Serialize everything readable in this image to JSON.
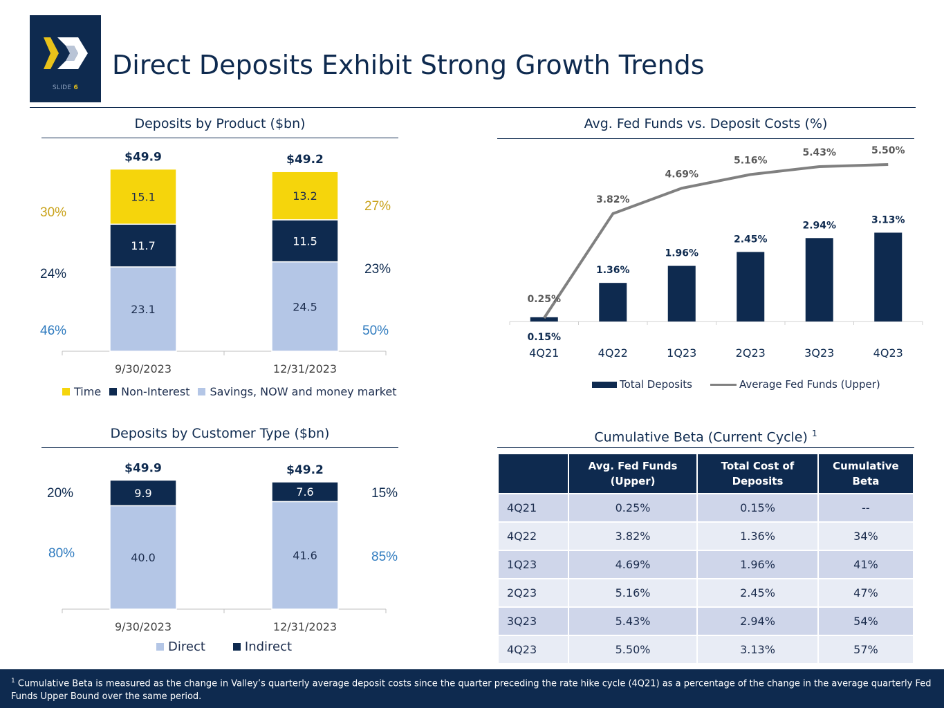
{
  "header": {
    "title": "Direct Deposits Exhibit Strong Growth Trends",
    "slide_word": "SLIDE",
    "slide_number": "6"
  },
  "colors": {
    "navy": "#0e2a4f",
    "yellow": "#f5d50c",
    "light_blue": "#b4c6e6",
    "gray_line": "#808080",
    "pct_gold": "#c9a21a",
    "pct_blue": "#2f7bbf"
  },
  "chart_data": [
    {
      "id": "product",
      "type": "bar",
      "stacked": true,
      "title": "Deposits by Product ($bn)",
      "categories": [
        "9/30/2023",
        "12/31/2023"
      ],
      "totals": [
        "$49.9",
        "$49.2"
      ],
      "series": [
        {
          "name": "Savings, NOW and money market",
          "values": [
            23.1,
            24.5
          ],
          "labels": [
            "23.1",
            "24.5"
          ],
          "color": "#b4c6e6",
          "text_color": "#1b2c4d"
        },
        {
          "name": "Non-Interest",
          "values": [
            11.7,
            11.5
          ],
          "labels": [
            "11.7",
            "11.5"
          ],
          "color": "#0e2a4f",
          "text_color": "#ffffff"
        },
        {
          "name": "Time",
          "values": [
            15.1,
            13.2
          ],
          "labels": [
            "15.1",
            "13.2"
          ],
          "color": "#f5d50c",
          "text_color": "#1b2c4d"
        }
      ],
      "legend_order": [
        "Time",
        "Non-Interest",
        "Savings, NOW and money market"
      ],
      "share_left": {
        "time": "30%",
        "noninterest": "24%",
        "savings": "46%"
      },
      "share_right": {
        "time": "27%",
        "noninterest": "23%",
        "savings": "50%"
      },
      "ylim": [
        0,
        50
      ]
    },
    {
      "id": "customer",
      "type": "bar",
      "stacked": true,
      "title": "Deposits by Customer Type ($bn)",
      "categories": [
        "9/30/2023",
        "12/31/2023"
      ],
      "totals": [
        "$49.9",
        "$49.2"
      ],
      "series": [
        {
          "name": "Direct",
          "values": [
            40.0,
            41.6
          ],
          "labels": [
            "40.0",
            "41.6"
          ],
          "color": "#b4c6e6",
          "text_color": "#1b2c4d"
        },
        {
          "name": "Indirect",
          "values": [
            9.9,
            7.6
          ],
          "labels": [
            "9.9",
            "7.6"
          ],
          "color": "#0e2a4f",
          "text_color": "#ffffff"
        }
      ],
      "legend_order": [
        "Direct",
        "Indirect"
      ],
      "share_left": {
        "indirect": "20%",
        "direct": "80%"
      },
      "share_right": {
        "indirect": "15%",
        "direct": "85%"
      },
      "ylim": [
        0,
        50
      ]
    },
    {
      "id": "fedfunds",
      "type": "bar+line",
      "title": "Avg. Fed Funds vs. Deposit Costs (%)",
      "categories": [
        "4Q21",
        "4Q22",
        "1Q23",
        "2Q23",
        "3Q23",
        "4Q23"
      ],
      "series": [
        {
          "name": "Total Deposits",
          "type": "bar",
          "values": [
            0.15,
            1.36,
            1.96,
            2.45,
            2.94,
            3.13
          ],
          "labels": [
            "0.15%",
            "1.36%",
            "1.96%",
            "2.45%",
            "2.94%",
            "3.13%"
          ]
        },
        {
          "name": "Average Fed Funds (Upper)",
          "type": "line",
          "values": [
            0.25,
            3.82,
            4.69,
            5.16,
            5.43,
            5.5
          ],
          "labels": [
            "0.25%",
            "3.82%",
            "4.69%",
            "5.16%",
            "5.43%",
            "5.50%"
          ]
        }
      ],
      "ylim": [
        0,
        5.5
      ]
    }
  ],
  "beta_table": {
    "title": "Cumulative Beta (Current Cycle)",
    "title_sup": "1",
    "headers": [
      "",
      "Avg. Fed Funds (Upper)",
      "Total Cost of Deposits",
      "Cumulative Beta"
    ],
    "rows": [
      [
        "4Q21",
        "0.25%",
        "0.15%",
        "--"
      ],
      [
        "4Q22",
        "3.82%",
        "1.36%",
        "34%"
      ],
      [
        "1Q23",
        "4.69%",
        "1.96%",
        "41%"
      ],
      [
        "2Q23",
        "5.16%",
        "2.45%",
        "47%"
      ],
      [
        "3Q23",
        "5.43%",
        "2.94%",
        "54%"
      ],
      [
        "4Q23",
        "5.50%",
        "3.13%",
        "57%"
      ]
    ]
  },
  "footnote": {
    "marker": "1",
    "text": " Cumulative Beta is measured as the change in Valley’s quarterly average deposit costs since the quarter preceding the rate hike cycle (4Q21) as a percentage of the change in the average quarterly Fed Funds Upper Bound over the same period."
  }
}
